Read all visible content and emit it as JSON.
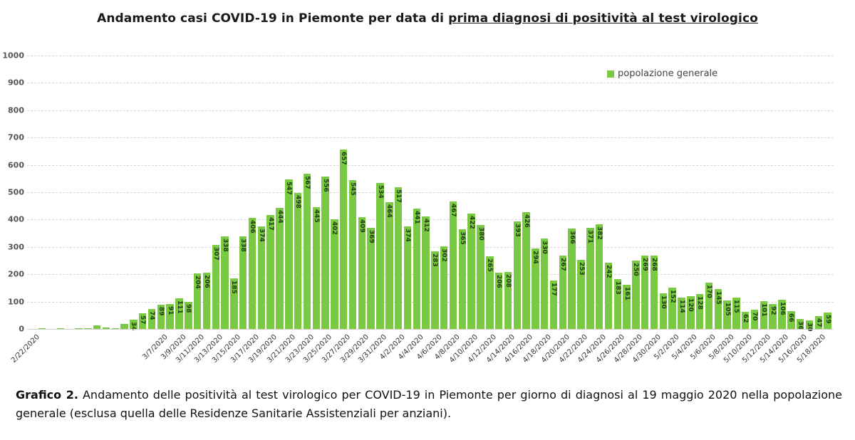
{
  "title": {
    "prefix": "Andamento casi COVID-19 in Piemonte per data di ",
    "underlined": "prima diagnosi di positività al test virologico"
  },
  "legend": {
    "label": "popolazione generale",
    "color": "#7ac943"
  },
  "caption": {
    "bold": "Grafico 2.",
    "text": " Andamento delle positività al test virologico per COVID-19 in Piemonte per giorno di diagnosi al 19 maggio 2020 nella popolazione generale (esclusa quella delle Residenze Sanitarie Assistenziali per anziani)."
  },
  "chart_data": {
    "type": "bar",
    "title": "Andamento casi COVID-19 in Piemonte per data di prima diagnosi di positività al test virologico",
    "xlabel": "",
    "ylabel": "",
    "ylim": [
      0,
      1000
    ],
    "yticks": [
      0,
      100,
      200,
      300,
      400,
      500,
      600,
      700,
      800,
      900,
      1000
    ],
    "grid": true,
    "legend_position": "top-right",
    "bar_color": "#7ac943",
    "categories": [
      "2/22/2020",
      "2/23/2020",
      "2/24/2020",
      "2/25/2020",
      "2/26/2020",
      "2/27/2020",
      "2/28/2020",
      "2/29/2020",
      "3/1/2020",
      "3/2/2020",
      "3/3/2020",
      "3/4/2020",
      "3/5/2020",
      "3/6/2020",
      "3/7/2020",
      "3/8/2020",
      "3/9/2020",
      "3/10/2020",
      "3/11/2020",
      "3/12/2020",
      "3/13/2020",
      "3/14/2020",
      "3/15/2020",
      "3/16/2020",
      "3/17/2020",
      "3/18/2020",
      "3/19/2020",
      "3/20/2020",
      "3/21/2020",
      "3/22/2020",
      "3/23/2020",
      "3/24/2020",
      "3/25/2020",
      "3/26/2020",
      "3/27/2020",
      "3/28/2020",
      "3/29/2020",
      "3/30/2020",
      "3/31/2020",
      "4/1/2020",
      "4/2/2020",
      "4/3/2020",
      "4/4/2020",
      "4/5/2020",
      "4/6/2020",
      "4/7/2020",
      "4/8/2020",
      "4/9/2020",
      "4/10/2020",
      "4/11/2020",
      "4/12/2020",
      "4/13/2020",
      "4/14/2020",
      "4/15/2020",
      "4/16/2020",
      "4/17/2020",
      "4/18/2020",
      "4/19/2020",
      "4/20/2020",
      "4/21/2020",
      "4/22/2020",
      "4/23/2020",
      "4/24/2020",
      "4/25/2020",
      "4/26/2020",
      "4/27/2020",
      "4/28/2020",
      "4/29/2020",
      "4/30/2020",
      "5/1/2020",
      "5/2/2020",
      "5/3/2020",
      "5/4/2020",
      "5/5/2020",
      "5/6/2020",
      "5/7/2020",
      "5/8/2020",
      "5/9/2020",
      "5/10/2020",
      "5/11/2020",
      "5/12/2020",
      "5/13/2020",
      "5/14/2020",
      "5/15/2020",
      "5/16/2020",
      "5/17/2020",
      "5/18/2020",
      "5/19/2020"
    ],
    "series": [
      {
        "name": "popolazione generale",
        "values": [
          0,
          1,
          0,
          2,
          0,
          3,
          3,
          12,
          4,
          2,
          18,
          34,
          57,
          74,
          89,
          91,
          111,
          98,
          204,
          206,
          307,
          338,
          185,
          338,
          406,
          374,
          417,
          444,
          547,
          498,
          567,
          445,
          556,
          402,
          657,
          545,
          409,
          369,
          534,
          464,
          517,
          374,
          441,
          412,
          283,
          302,
          467,
          365,
          422,
          380,
          265,
          206,
          208,
          393,
          426,
          294,
          330,
          177,
          267,
          366,
          253,
          371,
          382,
          242,
          183,
          161,
          250,
          269,
          268,
          130,
          152,
          114,
          120,
          128,
          170,
          145,
          105,
          115,
          62,
          70,
          101,
          92,
          106,
          66,
          36,
          30,
          47,
          59
        ]
      }
    ],
    "xtick_labels_shown": [
      "2/22/2020",
      "3/7/2020",
      "3/9/2020",
      "3/11/2020",
      "3/13/2020",
      "3/15/2020",
      "3/17/2020",
      "3/19/2020",
      "3/21/2020",
      "3/23/2020",
      "3/25/2020",
      "3/27/2020",
      "3/29/2020",
      "3/31/2020",
      "4/2/2020",
      "4/4/2020",
      "4/6/2020",
      "4/8/2020",
      "4/10/2020",
      "4/12/2020",
      "4/14/2020",
      "4/16/2020",
      "4/18/2020",
      "4/20/2020",
      "4/22/2020",
      "4/24/2020",
      "4/26/2020",
      "4/28/2020",
      "4/30/2020",
      "5/2/2020",
      "5/4/2020",
      "5/6/2020",
      "5/8/2020",
      "5/10/2020",
      "5/12/2020",
      "5/14/2020",
      "5/16/2020",
      "5/18/2020"
    ]
  }
}
